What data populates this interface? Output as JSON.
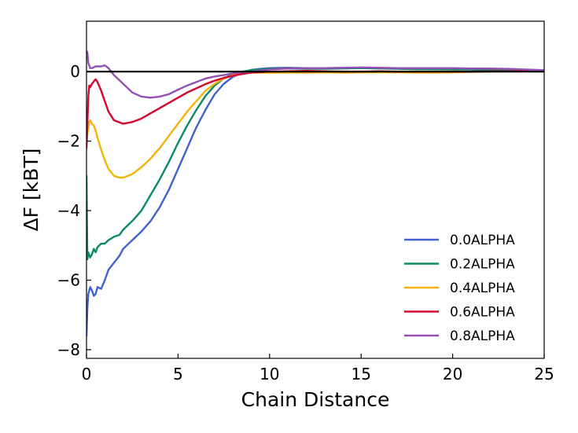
{
  "chart_data": {
    "type": "line",
    "title": "",
    "xlabel": "Chain Distance",
    "ylabel": "ΔF [kBT]",
    "xlim": [
      0,
      25
    ],
    "ylim": [
      -8.25,
      1.45
    ],
    "xticks": [
      0,
      5,
      10,
      15,
      20,
      25
    ],
    "yticks": [
      -8,
      -6,
      -4,
      -2,
      0
    ],
    "grid": false,
    "legend_position": "lower-right",
    "reference_line": {
      "y": 0,
      "color": "#000000"
    },
    "series": [
      {
        "name": "0.0ALPHA",
        "color": "#4062d0",
        "x": [
          0.0,
          0.05,
          0.1,
          0.2,
          0.3,
          0.4,
          0.5,
          0.6,
          0.8,
          1.0,
          1.2,
          1.5,
          1.8,
          2.0,
          2.5,
          3.0,
          3.5,
          4.0,
          4.5,
          5.0,
          5.5,
          6.0,
          6.5,
          7.0,
          7.5,
          8.0,
          8.5,
          9.0,
          9.5,
          10.0,
          11.0,
          12.0,
          13.0,
          14.0,
          15.0,
          16.0,
          17.0,
          18.0,
          19.0,
          20.0,
          21.0,
          22.0,
          23.0,
          24.0,
          25.0
        ],
        "y": [
          -7.6,
          -6.8,
          -6.4,
          -6.2,
          -6.3,
          -6.45,
          -6.4,
          -6.2,
          -6.25,
          -6.0,
          -5.7,
          -5.5,
          -5.3,
          -5.1,
          -4.85,
          -4.6,
          -4.3,
          -3.9,
          -3.4,
          -2.8,
          -2.2,
          -1.6,
          -1.1,
          -0.65,
          -0.35,
          -0.15,
          -0.02,
          0.05,
          0.08,
          0.1,
          0.11,
          0.1,
          0.09,
          0.1,
          0.11,
          0.1,
          0.09,
          0.08,
          0.07,
          0.07,
          0.06,
          0.05,
          0.05,
          0.04,
          0.03
        ]
      },
      {
        "name": "0.2ALPHA",
        "color": "#0b8a65",
        "x": [
          0.0,
          0.05,
          0.1,
          0.2,
          0.3,
          0.4,
          0.5,
          0.6,
          0.8,
          1.0,
          1.2,
          1.5,
          1.8,
          2.0,
          2.5,
          3.0,
          3.5,
          4.0,
          4.5,
          5.0,
          5.5,
          6.0,
          6.5,
          7.0,
          7.5,
          8.0,
          8.5,
          9.0,
          10.0,
          11.0,
          12.0,
          13.0,
          14.0,
          15.0,
          16.0,
          17.0,
          18.0,
          19.0,
          20.0,
          21.0,
          22.0,
          23.0,
          24.0,
          25.0
        ],
        "y": [
          -3.0,
          -5.4,
          -5.2,
          -5.35,
          -5.25,
          -5.1,
          -5.2,
          -5.05,
          -4.95,
          -4.95,
          -4.85,
          -4.75,
          -4.7,
          -4.55,
          -4.3,
          -4.0,
          -3.55,
          -3.1,
          -2.6,
          -2.05,
          -1.55,
          -1.1,
          -0.7,
          -0.4,
          -0.2,
          -0.07,
          0.0,
          0.04,
          0.08,
          0.09,
          0.08,
          0.08,
          0.09,
          0.1,
          0.09,
          0.08,
          0.07,
          0.07,
          0.06,
          0.06,
          0.05,
          0.05,
          0.04,
          0.03
        ]
      },
      {
        "name": "0.4ALPHA",
        "color": "#f5b20a",
        "x": [
          0.0,
          0.05,
          0.1,
          0.15,
          0.2,
          0.3,
          0.4,
          0.5,
          0.6,
          0.8,
          1.0,
          1.2,
          1.5,
          1.8,
          2.0,
          2.5,
          3.0,
          3.5,
          4.0,
          4.5,
          5.0,
          5.5,
          6.0,
          6.5,
          7.0,
          7.5,
          8.0,
          8.5,
          9.0,
          10.0,
          11.0,
          12.0,
          13.0,
          14.0,
          15.0,
          16.0,
          17.0,
          18.0,
          19.0,
          20.0,
          21.0,
          22.0,
          23.0,
          24.0,
          25.0
        ],
        "y": [
          -2.0,
          -1.8,
          -1.6,
          -1.45,
          -1.4,
          -1.5,
          -1.55,
          -1.7,
          -1.9,
          -2.25,
          -2.55,
          -2.8,
          -3.0,
          -3.05,
          -3.05,
          -2.95,
          -2.75,
          -2.5,
          -2.2,
          -1.85,
          -1.5,
          -1.15,
          -0.85,
          -0.55,
          -0.35,
          -0.2,
          -0.1,
          -0.05,
          -0.03,
          -0.03,
          -0.03,
          -0.03,
          -0.02,
          -0.03,
          -0.02,
          -0.02,
          -0.02,
          -0.03,
          -0.03,
          -0.02,
          -0.01,
          0.0,
          0.01,
          0.02,
          0.02
        ]
      },
      {
        "name": "0.6ALPHA",
        "color": "#d8052f",
        "x": [
          0.0,
          0.05,
          0.1,
          0.15,
          0.2,
          0.3,
          0.4,
          0.5,
          0.6,
          0.8,
          1.0,
          1.2,
          1.5,
          2.0,
          2.5,
          3.0,
          3.5,
          4.0,
          4.5,
          5.0,
          5.5,
          6.0,
          6.5,
          7.0,
          7.5,
          8.0,
          8.5,
          9.0,
          10.0,
          11.0,
          12.0,
          13.0,
          14.0,
          15.0,
          16.0,
          17.0,
          18.0,
          19.0,
          20.0,
          21.0,
          22.0,
          23.0,
          24.0,
          25.0
        ],
        "y": [
          -2.2,
          -1.5,
          -0.7,
          -0.4,
          -0.45,
          -0.35,
          -0.28,
          -0.22,
          -0.3,
          -0.55,
          -0.85,
          -1.15,
          -1.4,
          -1.5,
          -1.45,
          -1.35,
          -1.2,
          -1.05,
          -0.9,
          -0.75,
          -0.6,
          -0.48,
          -0.36,
          -0.26,
          -0.18,
          -0.12,
          -0.07,
          -0.03,
          0.0,
          0.01,
          0.02,
          0.01,
          0.0,
          0.0,
          0.01,
          0.0,
          0.0,
          0.0,
          0.0,
          0.0,
          0.01,
          0.01,
          0.02,
          0.02
        ]
      },
      {
        "name": "0.8ALPHA",
        "color": "#9351b5",
        "x": [
          0.0,
          0.05,
          0.1,
          0.2,
          0.3,
          0.5,
          0.8,
          1.0,
          1.2,
          1.5,
          2.0,
          2.5,
          3.0,
          3.5,
          4.0,
          4.5,
          5.0,
          5.5,
          6.0,
          6.5,
          7.0,
          7.5,
          8.0,
          8.5,
          9.0,
          10.0,
          11.0,
          12.0,
          13.0,
          14.0,
          15.0,
          16.0,
          17.0,
          18.0,
          19.0,
          20.0,
          21.0,
          22.0,
          23.0,
          24.0,
          25.0
        ],
        "y": [
          0.6,
          0.55,
          0.25,
          0.1,
          0.1,
          0.15,
          0.15,
          0.18,
          0.1,
          -0.1,
          -0.35,
          -0.6,
          -0.72,
          -0.75,
          -0.72,
          -0.65,
          -0.52,
          -0.4,
          -0.3,
          -0.2,
          -0.14,
          -0.1,
          -0.05,
          -0.02,
          0.0,
          0.06,
          0.09,
          0.1,
          0.1,
          0.11,
          0.12,
          0.11,
          0.1,
          0.1,
          0.1,
          0.1,
          0.09,
          0.09,
          0.08,
          0.06,
          0.04
        ]
      }
    ]
  }
}
